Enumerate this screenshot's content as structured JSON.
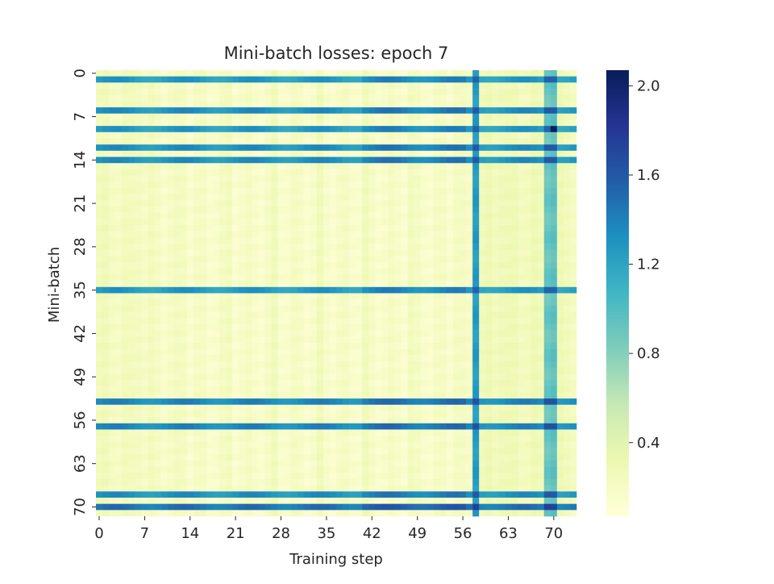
{
  "chart_data": {
    "type": "heatmap",
    "title": "Mini-batch losses: epoch 7",
    "xlabel": "Training step",
    "ylabel": "Mini-batch",
    "x_range": [
      0,
      74
    ],
    "y_range": [
      0,
      72
    ],
    "x_ticks": [
      0,
      7,
      14,
      21,
      28,
      35,
      42,
      49,
      56,
      63,
      70
    ],
    "y_ticks": [
      0,
      7,
      14,
      21,
      28,
      35,
      42,
      49,
      56,
      63,
      70
    ],
    "colorbar": {
      "colormap": "YlGnBu",
      "range": [
        0.07,
        2.07
      ],
      "ticks": [
        "0.4",
        "0.8",
        "1.2",
        "1.6",
        "2.0"
      ]
    },
    "base_loss": 0.18,
    "high_loss_rows": [
      {
        "row": 1,
        "loss": 1.25
      },
      {
        "row": 6,
        "loss": 1.3
      },
      {
        "row": 9,
        "loss": 1.25
      },
      {
        "row": 12,
        "loss": 1.3
      },
      {
        "row": 14,
        "loss": 1.3
      },
      {
        "row": 35,
        "loss": 1.25
      },
      {
        "row": 53,
        "loss": 1.35
      },
      {
        "row": 57,
        "loss": 1.35
      },
      {
        "row": 68,
        "loss": 1.3
      },
      {
        "row": 70,
        "loss": 1.45
      }
    ],
    "high_loss_columns": [
      {
        "col": 58,
        "loss": 1.25
      },
      {
        "col": 69,
        "loss": 0.9
      },
      {
        "col": 70,
        "loss": 0.95
      }
    ],
    "noted_peak": {
      "row": 9,
      "col": 70,
      "loss": 2.05
    }
  }
}
